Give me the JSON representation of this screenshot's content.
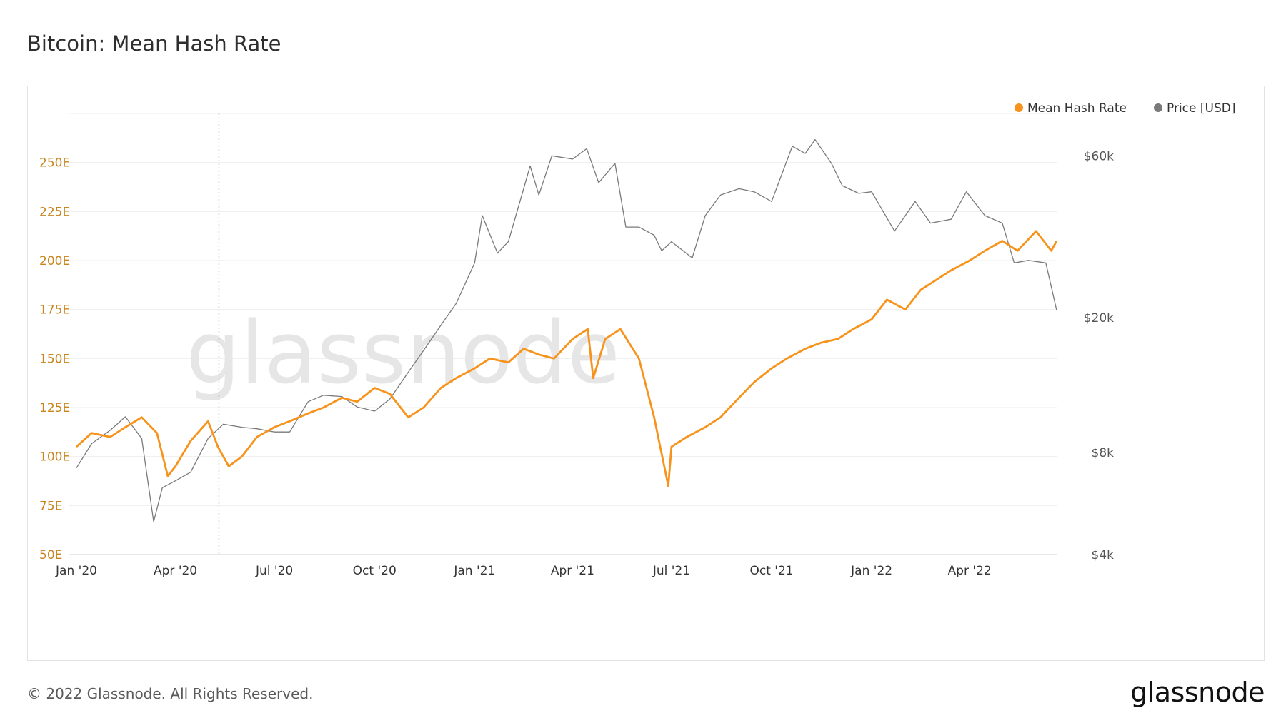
{
  "page": {
    "title": "Bitcoin: Mean Hash Rate",
    "copyright": "© 2022 Glassnode. All Rights Reserved.",
    "logo": "glassnode",
    "watermark": "glassnode"
  },
  "colors": {
    "hash_rate": "#f7931a",
    "price": "#7a7a7a",
    "left_axis_text": "#c9841c",
    "right_axis_text": "#555555",
    "grid": "#eeeeee"
  },
  "chart_data": {
    "type": "line",
    "title": "Bitcoin: Mean Hash Rate",
    "legend_position": "top-right",
    "grid": true,
    "x_ticks": [
      "Jan '20",
      "Apr '20",
      "Jul '20",
      "Oct '20",
      "Jan '21",
      "Apr '21",
      "Jul '21",
      "Oct '21",
      "Jan '22",
      "Apr '22"
    ],
    "x_range": [
      "2020-01-01",
      "2022-06-20"
    ],
    "y_left": {
      "ticks": [
        "50E",
        "75E",
        "100E",
        "125E",
        "150E",
        "175E",
        "200E",
        "225E",
        "250E"
      ],
      "range": [
        50,
        275
      ]
    },
    "y_right": {
      "scale": "log",
      "ticks": [
        "$4k",
        "$8k",
        "$20k",
        "$60k"
      ],
      "tick_values": [
        4000,
        8000,
        20000,
        60000
      ],
      "range": [
        4000,
        80000
      ]
    },
    "series": [
      {
        "name": "Mean Hash Rate",
        "axis": "left",
        "x": [
          "2020-01-01",
          "2020-01-15",
          "2020-02-01",
          "2020-02-15",
          "2020-03-01",
          "2020-03-15",
          "2020-03-25",
          "2020-04-01",
          "2020-04-15",
          "2020-05-01",
          "2020-05-10",
          "2020-05-20",
          "2020-06-01",
          "2020-06-15",
          "2020-07-01",
          "2020-07-15",
          "2020-08-01",
          "2020-08-15",
          "2020-09-01",
          "2020-09-15",
          "2020-10-01",
          "2020-10-15",
          "2020-11-01",
          "2020-11-15",
          "2020-12-01",
          "2020-12-15",
          "2021-01-01",
          "2021-01-15",
          "2021-02-01",
          "2021-02-15",
          "2021-03-01",
          "2021-03-15",
          "2021-04-01",
          "2021-04-15",
          "2021-04-20",
          "2021-05-01",
          "2021-05-15",
          "2021-06-01",
          "2021-06-15",
          "2021-06-28",
          "2021-07-01",
          "2021-07-15",
          "2021-08-01",
          "2021-08-15",
          "2021-09-01",
          "2021-09-15",
          "2021-10-01",
          "2021-10-15",
          "2021-11-01",
          "2021-11-15",
          "2021-12-01",
          "2021-12-15",
          "2022-01-01",
          "2022-01-15",
          "2022-02-01",
          "2022-02-15",
          "2022-03-01",
          "2022-03-15",
          "2022-04-01",
          "2022-04-15",
          "2022-05-01",
          "2022-05-15",
          "2022-06-01",
          "2022-06-15",
          "2022-06-20"
        ],
        "values": [
          105,
          112,
          110,
          115,
          120,
          112,
          90,
          95,
          108,
          118,
          105,
          95,
          100,
          110,
          115,
          118,
          122,
          125,
          130,
          128,
          135,
          132,
          120,
          125,
          135,
          140,
          145,
          150,
          148,
          155,
          152,
          150,
          160,
          165,
          140,
          160,
          165,
          150,
          120,
          85,
          105,
          110,
          115,
          120,
          130,
          138,
          145,
          150,
          155,
          158,
          160,
          165,
          170,
          180,
          175,
          185,
          190,
          195,
          200,
          205,
          210,
          205,
          215,
          205,
          210
        ]
      },
      {
        "name": "Price [USD]",
        "axis": "right",
        "x": [
          "2020-01-01",
          "2020-01-15",
          "2020-02-01",
          "2020-02-15",
          "2020-03-01",
          "2020-03-12",
          "2020-03-20",
          "2020-04-01",
          "2020-04-15",
          "2020-05-01",
          "2020-05-15",
          "2020-06-01",
          "2020-06-15",
          "2020-07-01",
          "2020-07-15",
          "2020-08-01",
          "2020-08-15",
          "2020-09-01",
          "2020-09-15",
          "2020-10-01",
          "2020-10-15",
          "2020-11-01",
          "2020-11-15",
          "2020-12-01",
          "2020-12-15",
          "2021-01-01",
          "2021-01-08",
          "2021-01-22",
          "2021-02-01",
          "2021-02-15",
          "2021-02-21",
          "2021-03-01",
          "2021-03-13",
          "2021-04-01",
          "2021-04-14",
          "2021-04-25",
          "2021-05-10",
          "2021-05-20",
          "2021-06-01",
          "2021-06-15",
          "2021-06-22",
          "2021-07-01",
          "2021-07-20",
          "2021-08-01",
          "2021-08-15",
          "2021-09-01",
          "2021-09-15",
          "2021-10-01",
          "2021-10-20",
          "2021-11-01",
          "2021-11-10",
          "2021-11-25",
          "2021-12-05",
          "2021-12-20",
          "2022-01-01",
          "2022-01-22",
          "2022-02-10",
          "2022-02-24",
          "2022-03-15",
          "2022-03-29",
          "2022-04-15",
          "2022-05-01",
          "2022-05-12",
          "2022-05-25",
          "2022-06-10",
          "2022-06-20"
        ],
        "values": [
          7200,
          8500,
          9300,
          10200,
          8800,
          5000,
          6300,
          6600,
          7000,
          8800,
          9700,
          9500,
          9400,
          9200,
          9200,
          11300,
          11800,
          11700,
          10900,
          10600,
          11500,
          13800,
          16000,
          19000,
          22000,
          29000,
          40000,
          31000,
          33500,
          48000,
          56000,
          46000,
          60000,
          58700,
          63000,
          50000,
          57000,
          37000,
          37000,
          35000,
          31500,
          33500,
          30000,
          40000,
          46000,
          48000,
          47000,
          44000,
          64000,
          61000,
          67000,
          57000,
          49000,
          46500,
          47000,
          36000,
          44000,
          38000,
          39000,
          47000,
          40000,
          38000,
          29000,
          29500,
          29000,
          21000
        ]
      }
    ]
  }
}
